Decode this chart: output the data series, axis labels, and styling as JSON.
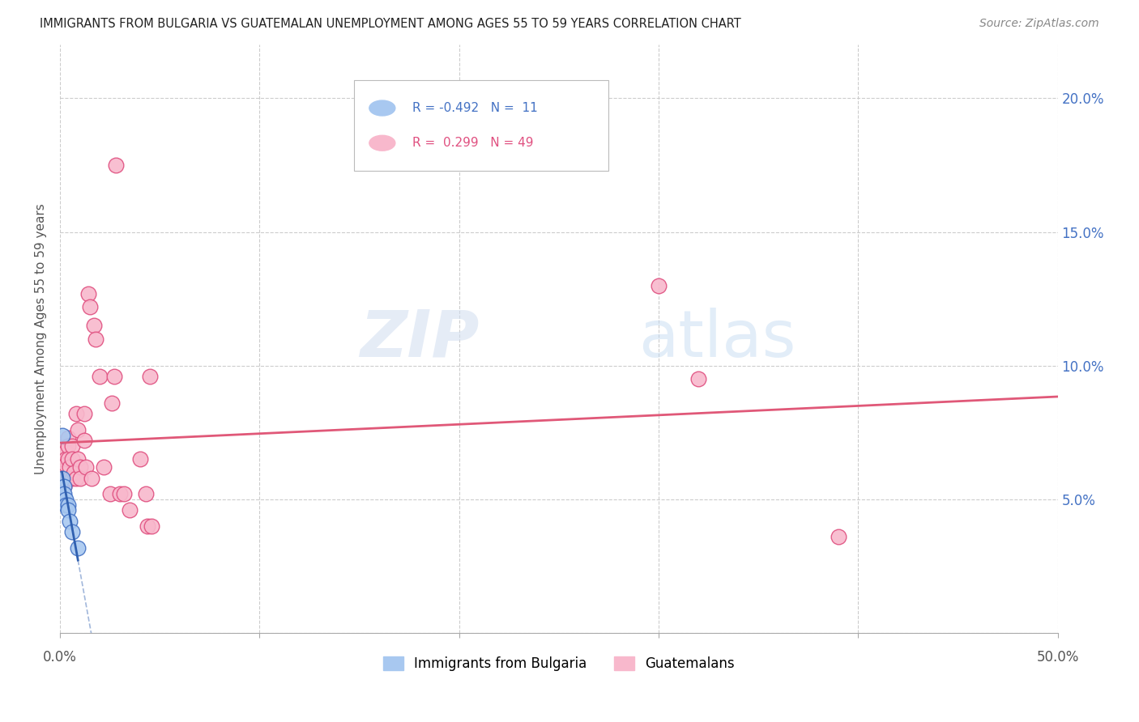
{
  "title": "IMMIGRANTS FROM BULGARIA VS GUATEMALAN UNEMPLOYMENT AMONG AGES 55 TO 59 YEARS CORRELATION CHART",
  "source": "Source: ZipAtlas.com",
  "ylabel": "Unemployment Among Ages 55 to 59 years",
  "xlim": [
    0.0,
    0.5
  ],
  "ylim": [
    0.0,
    0.22
  ],
  "yticks": [
    0.0,
    0.05,
    0.1,
    0.15,
    0.2
  ],
  "ytick_labels": [
    "",
    "5.0%",
    "10.0%",
    "15.0%",
    "20.0%"
  ],
  "xticks": [
    0.0,
    0.1,
    0.2,
    0.3,
    0.4,
    0.5
  ],
  "legend_label_bulgaria": "Immigrants from Bulgaria",
  "legend_label_guatemalan": "Guatemalans",
  "watermark_zip": "ZIP",
  "watermark_atlas": "atlas",
  "bulgaria_color": "#a8c8f0",
  "bulgaria_edge_color": "#4472c4",
  "guatemalan_color": "#f8b8cc",
  "guatemalan_edge_color": "#e05080",
  "bulgaria_line_color": "#3060b0",
  "guatemalan_line_color": "#e05878",
  "bulgaria_points": [
    [
      0.001,
      0.074
    ],
    [
      0.001,
      0.058
    ],
    [
      0.002,
      0.055
    ],
    [
      0.002,
      0.052
    ],
    [
      0.003,
      0.05
    ],
    [
      0.003,
      0.048
    ],
    [
      0.004,
      0.048
    ],
    [
      0.004,
      0.046
    ],
    [
      0.005,
      0.042
    ],
    [
      0.006,
      0.038
    ],
    [
      0.009,
      0.032
    ]
  ],
  "guatemalan_points": [
    [
      0.001,
      0.063
    ],
    [
      0.001,
      0.058
    ],
    [
      0.001,
      0.055
    ],
    [
      0.002,
      0.06
    ],
    [
      0.002,
      0.058
    ],
    [
      0.002,
      0.055
    ],
    [
      0.003,
      0.068
    ],
    [
      0.003,
      0.065
    ],
    [
      0.003,
      0.063
    ],
    [
      0.004,
      0.073
    ],
    [
      0.004,
      0.07
    ],
    [
      0.004,
      0.065
    ],
    [
      0.005,
      0.062
    ],
    [
      0.005,
      0.058
    ],
    [
      0.006,
      0.07
    ],
    [
      0.006,
      0.065
    ],
    [
      0.006,
      0.058
    ],
    [
      0.007,
      0.06
    ],
    [
      0.008,
      0.058
    ],
    [
      0.008,
      0.082
    ],
    [
      0.009,
      0.076
    ],
    [
      0.009,
      0.065
    ],
    [
      0.01,
      0.062
    ],
    [
      0.01,
      0.058
    ],
    [
      0.012,
      0.082
    ],
    [
      0.012,
      0.072
    ],
    [
      0.013,
      0.062
    ],
    [
      0.014,
      0.127
    ],
    [
      0.015,
      0.122
    ],
    [
      0.016,
      0.058
    ],
    [
      0.017,
      0.115
    ],
    [
      0.018,
      0.11
    ],
    [
      0.02,
      0.096
    ],
    [
      0.022,
      0.062
    ],
    [
      0.025,
      0.052
    ],
    [
      0.026,
      0.086
    ],
    [
      0.027,
      0.096
    ],
    [
      0.028,
      0.175
    ],
    [
      0.03,
      0.052
    ],
    [
      0.032,
      0.052
    ],
    [
      0.035,
      0.046
    ],
    [
      0.04,
      0.065
    ],
    [
      0.043,
      0.052
    ],
    [
      0.044,
      0.04
    ],
    [
      0.045,
      0.096
    ],
    [
      0.046,
      0.04
    ],
    [
      0.3,
      0.13
    ],
    [
      0.32,
      0.095
    ],
    [
      0.39,
      0.036
    ]
  ],
  "line_x_start": 0.0,
  "line_x_end": 0.5
}
